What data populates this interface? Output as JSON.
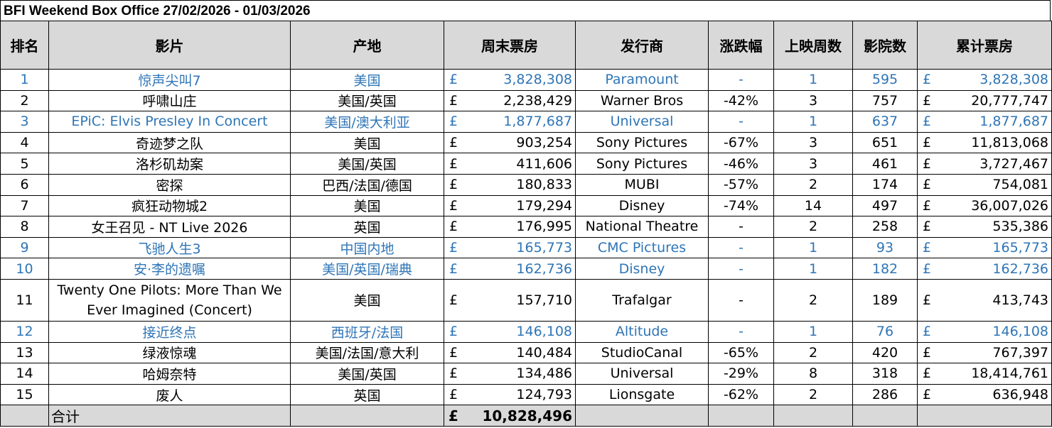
{
  "title": "BFI Weekend Box Office 27/02/2026 - 01/03/2026",
  "headers": {
    "rank": "排名",
    "film": "影片",
    "origin": "产地",
    "weekend_gross": "周末票房",
    "distributor": "发行商",
    "change": "涨跌幅",
    "weeks": "上映周数",
    "cinemas": "影院数",
    "total_gross": "累计票房"
  },
  "currency": "£",
  "rows": [
    {
      "rank": "1",
      "film": "惊声尖叫7",
      "origin": "美国",
      "weekend": "3,828,308",
      "distributor": "Paramount",
      "change": "-",
      "weeks": "1",
      "cinemas": "595",
      "total": "3,828,308",
      "is_new": true
    },
    {
      "rank": "2",
      "film": "呼啸山庄",
      "origin": "美国/英国",
      "weekend": "2,238,429",
      "distributor": "Warner Bros",
      "change": "-42%",
      "weeks": "3",
      "cinemas": "757",
      "total": "20,777,747",
      "is_new": false
    },
    {
      "rank": "3",
      "film": "EPiC: Elvis Presley In Concert",
      "origin": "美国/澳大利亚",
      "weekend": "1,877,687",
      "distributor": "Universal",
      "change": "-",
      "weeks": "1",
      "cinemas": "637",
      "total": "1,877,687",
      "is_new": true
    },
    {
      "rank": "4",
      "film": "奇迹梦之队",
      "origin": "美国",
      "weekend": "903,254",
      "distributor": "Sony Pictures",
      "change": "-67%",
      "weeks": "3",
      "cinemas": "651",
      "total": "11,813,068",
      "is_new": false
    },
    {
      "rank": "5",
      "film": "洛杉矶劫案",
      "origin": "美国/英国",
      "weekend": "411,606",
      "distributor": "Sony Pictures",
      "change": "-46%",
      "weeks": "3",
      "cinemas": "461",
      "total": "3,727,467",
      "is_new": false
    },
    {
      "rank": "6",
      "film": "密探",
      "origin": "巴西/法国/德国",
      "weekend": "180,833",
      "distributor": "MUBI",
      "change": "-57%",
      "weeks": "2",
      "cinemas": "174",
      "total": "754,081",
      "is_new": false
    },
    {
      "rank": "7",
      "film": "疯狂动物城2",
      "origin": "美国",
      "weekend": "179,294",
      "distributor": "Disney",
      "change": "-74%",
      "weeks": "14",
      "cinemas": "497",
      "total": "36,007,026",
      "is_new": false
    },
    {
      "rank": "8",
      "film": "女王召见 - NT Live 2026",
      "origin": "英国",
      "weekend": "176,995",
      "distributor": "National Theatre",
      "change": "-",
      "weeks": "2",
      "cinemas": "258",
      "total": "535,386",
      "is_new": false
    },
    {
      "rank": "9",
      "film": "飞驰人生3",
      "origin": "中国内地",
      "weekend": "165,773",
      "distributor": "CMC Pictures",
      "change": "-",
      "weeks": "1",
      "cinemas": "93",
      "total": "165,773",
      "is_new": true
    },
    {
      "rank": "10",
      "film": "安·李的遗嘱",
      "origin": "美国/英国/瑞典",
      "weekend": "162,736",
      "distributor": "Disney",
      "change": "-",
      "weeks": "1",
      "cinemas": "182",
      "total": "162,736",
      "is_new": true
    },
    {
      "rank": "11",
      "film": "Twenty One Pilots: More Than We Ever Imagined (Concert)",
      "origin": "美国",
      "weekend": "157,710",
      "distributor": "Trafalgar",
      "change": "-",
      "weeks": "2",
      "cinemas": "189",
      "total": "413,743",
      "is_new": false
    },
    {
      "rank": "12",
      "film": "接近终点",
      "origin": "西班牙/法国",
      "weekend": "146,108",
      "distributor": "Altitude",
      "change": "-",
      "weeks": "1",
      "cinemas": "76",
      "total": "146,108",
      "is_new": true
    },
    {
      "rank": "13",
      "film": "绿液惊魂",
      "origin": "美国/法国/意大利",
      "weekend": "140,484",
      "distributor": "StudioCanal",
      "change": "-65%",
      "weeks": "2",
      "cinemas": "420",
      "total": "767,397",
      "is_new": false
    },
    {
      "rank": "14",
      "film": "哈姆奈特",
      "origin": "美国/英国",
      "weekend": "134,486",
      "distributor": "Universal",
      "change": "-29%",
      "weeks": "8",
      "cinemas": "318",
      "total": "18,414,761",
      "is_new": false
    },
    {
      "rank": "15",
      "film": "废人",
      "origin": "英国",
      "weekend": "124,793",
      "distributor": "Lionsgate",
      "change": "-62%",
      "weeks": "2",
      "cinemas": "286",
      "total": "636,948",
      "is_new": false
    }
  ],
  "footer": {
    "label": "合计",
    "weekend_total": "10,828,496"
  },
  "colors": {
    "header_bg": "#d9d9d9",
    "new_release_text": "#2e75b6",
    "grid": "#000000"
  }
}
